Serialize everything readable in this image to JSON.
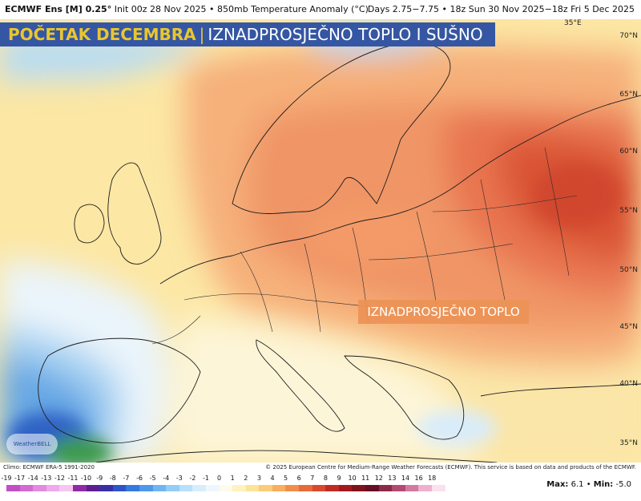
{
  "header": {
    "model": "ECMWF Ens [M] 0.25°",
    "init": "Init 00z 28 Nov 2025 • 850mb Temperature Anomaly (°C)",
    "valid": "Days 2.75−7.75 • 18z Sun 30 Nov 2025−18z Fri 5 Dec 2025"
  },
  "banner": {
    "part1": "POČETAK DECEMBRA",
    "separator": "|",
    "part2": "IZNADPROSJEČNO TOPLO I SUŠNO"
  },
  "callout": "IZNADPROSJEČNO TOPLO",
  "latitudes": [
    "70°N",
    "65°N",
    "60°N",
    "55°N",
    "50°N",
    "45°N",
    "40°N",
    "35°N"
  ],
  "longitude_label": "35°E",
  "logo_text": "WeatherBELL",
  "footer": {
    "climo": "Climo: ECMWF ERA-5 1991-2020",
    "copyright": "© 2025 European Centre for Medium-Range Weather Forecasts (ECMWF). This service is based on data and products of the ECMWF."
  },
  "scale": {
    "ticks": [
      "-19",
      "-17",
      "-14",
      "-13",
      "-12",
      "-11",
      "-10",
      "-9",
      "-8",
      "-7",
      "-6",
      "-5",
      "-4",
      "-3",
      "-2",
      "-1",
      "0",
      "1",
      "2",
      "3",
      "4",
      "5",
      "6",
      "7",
      "8",
      "9",
      "10",
      "11",
      "12",
      "13",
      "14",
      "16",
      "18"
    ],
    "colors": [
      "#c24fc4",
      "#d36bd2",
      "#e38be0",
      "#f0a9ec",
      "#f6c6f1",
      "#8f2ba6",
      "#5e1e92",
      "#3a2ea8",
      "#2d55c8",
      "#3779dd",
      "#4f99ea",
      "#6fb5f2",
      "#93cdf7",
      "#b7e0fa",
      "#d6eefc",
      "#eef7fd",
      "#fdfbe9",
      "#fff2bd",
      "#fde39a",
      "#fbcb79",
      "#f7ae5f",
      "#f18e4b",
      "#e76a3a",
      "#d8492e",
      "#c02b25",
      "#a11a20",
      "#80121c",
      "#660e24",
      "#8c2a4a",
      "#b24a72",
      "#d37aa1",
      "#efb0cf",
      "#fbe0ee"
    ],
    "max_label": "Max:",
    "max_value": "6.1",
    "min_label": "Min:",
    "min_value": "-5.0"
  }
}
